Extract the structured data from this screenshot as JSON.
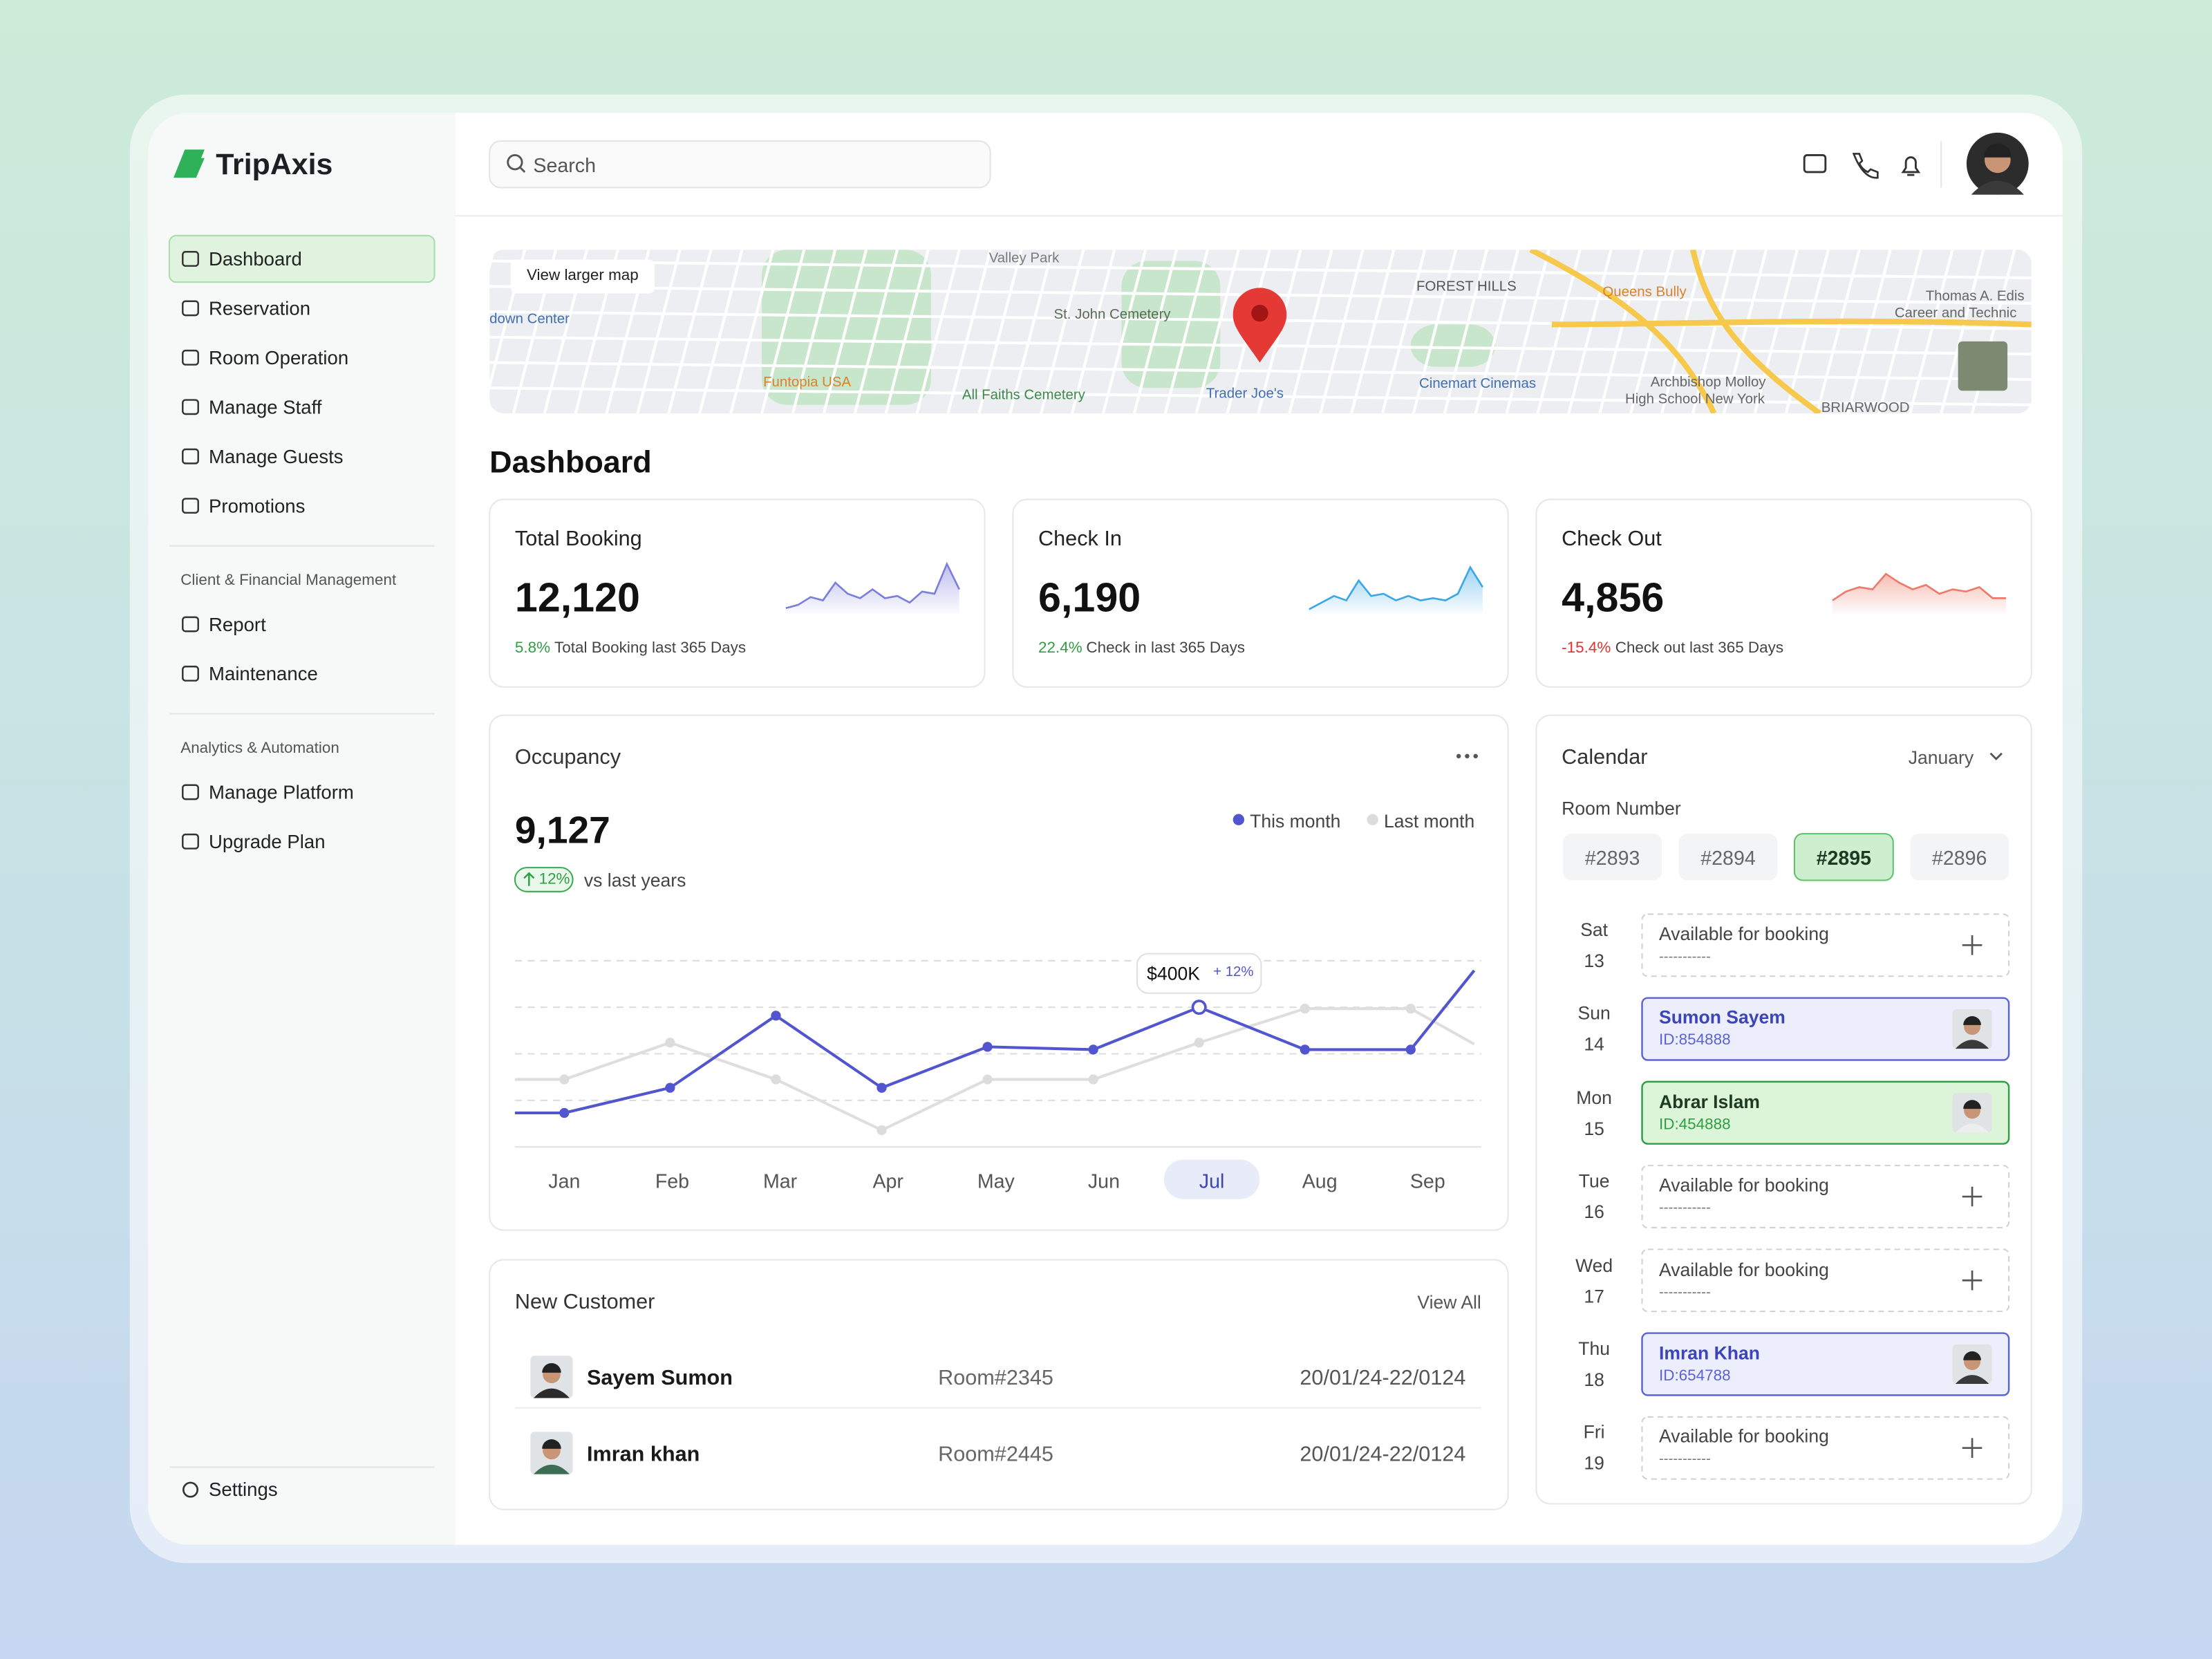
{
  "brand": "TripAxis",
  "search": "Search",
  "nav": {
    "main": [
      "Dashboard",
      "Reservation",
      "Room Operation",
      "Manage Staff",
      "Manage Guests",
      "Promotions"
    ],
    "active": 0,
    "sections": [
      {
        "title": "Client & Financial Management",
        "items": [
          "Report",
          "Maintenance"
        ]
      },
      {
        "title": "Analytics & Automation",
        "items": [
          "Manage Platform",
          "Upgrade Plan"
        ]
      }
    ],
    "settings": "Settings"
  },
  "map": {
    "button": "View larger map",
    "labels": [
      "Valley Park",
      "St. John Cemetery",
      "FOREST HILLS",
      "Queens Bully",
      "Thomas A. Edis",
      "Career and Technic",
      "down Center",
      "Funtopia USA",
      "All Faiths Cemetery",
      "Trader Joe's",
      "Cinemart Cinemas",
      "Archbishop Molloy",
      "High School New York",
      "BRIARWOOD"
    ]
  },
  "page_title": "Dashboard",
  "stats": [
    {
      "title": "Total Booking",
      "value": "12,120",
      "change": "5.8%",
      "note": "Total Booking last 365 Days",
      "color": "#2f9e44",
      "line": "#7b7fdc",
      "trend": [
        5,
        8,
        15,
        12,
        28,
        18,
        14,
        22,
        14,
        16,
        10,
        20,
        18,
        45,
        22
      ]
    },
    {
      "title": "Check In",
      "value": "6,190",
      "change": "22.4%",
      "note": "Check in last 365 Days",
      "color": "#2f9e44",
      "line": "#3ba7e8",
      "trend": [
        4,
        10,
        16,
        12,
        30,
        16,
        18,
        12,
        16,
        12,
        14,
        12,
        18,
        42,
        24
      ]
    },
    {
      "title": "Check Out",
      "value": "4,856",
      "change": "-15.4%",
      "note": "Check out last 365 Days",
      "color": "#e03131",
      "line": "#ee7b6a",
      "trend": [
        12,
        20,
        24,
        22,
        36,
        28,
        22,
        26,
        18,
        22,
        20,
        24,
        14,
        14
      ]
    }
  ],
  "occupancy": {
    "value": "9,127",
    "badge": "12%",
    "badge_note": "vs last years"
  },
  "chart_data": {
    "type": "line",
    "title": "Occupancy",
    "categories": [
      "Jan",
      "Feb",
      "Mar",
      "Apr",
      "May",
      "Jun",
      "Jul",
      "Aug",
      "Sep",
      null
    ],
    "series": [
      {
        "name": "This month",
        "color": "#5156cf",
        "values": [
          173,
          227,
          382,
          227,
          315,
          309,
          400,
          309,
          309,
          479
        ]
      },
      {
        "name": "Last month",
        "color": "#d9d9d9",
        "values": [
          245,
          324,
          245,
          136,
          245,
          245,
          324,
          397,
          397,
          321
        ]
      }
    ],
    "ylim": [
      100,
      500
    ],
    "grid": true,
    "highlight": 6,
    "tooltip": {
      "index": 6,
      "label": "$400K",
      "change": "+ 12%"
    }
  },
  "customers": {
    "title": "New Customer",
    "action": "View All",
    "rows": [
      {
        "name": "Sayem Sumon",
        "room": "Room#2345",
        "dates": "20/01/24-22/0124"
      },
      {
        "name": "Imran khan",
        "room": "Room#2445",
        "dates": "20/01/24-22/0124"
      }
    ]
  },
  "calendar": {
    "title": "Calendar",
    "month": "January",
    "room_label": "Room Number",
    "rooms": [
      "#2893",
      "#2894",
      "#2895",
      "#2896"
    ],
    "selected_room": 2,
    "days": [
      {
        "day": "Sat",
        "date": "13",
        "status": "Available for booking",
        "detail": "-----------"
      },
      {
        "day": "Sun",
        "date": "14",
        "name": "Sumon Sayem",
        "id": "ID:854888",
        "color": "#5b63d3",
        "bg": "#eceefb"
      },
      {
        "day": "Mon",
        "date": "15",
        "name": "Abrar Islam",
        "id": "ID:454888",
        "color": "#2f9e44",
        "bg": "#dcf5d8"
      },
      {
        "day": "Tue",
        "date": "16",
        "status": "Available for booking",
        "detail": "-----------"
      },
      {
        "day": "Wed",
        "date": "17",
        "status": "Available for booking",
        "detail": "-----------"
      },
      {
        "day": "Thu",
        "date": "18",
        "name": "Imran Khan",
        "id": "ID:654788",
        "color": "#5b63d3",
        "bg": "#eceefb"
      },
      {
        "day": "Fri",
        "date": "19",
        "status": "Available for booking",
        "detail": "-----------"
      }
    ]
  }
}
